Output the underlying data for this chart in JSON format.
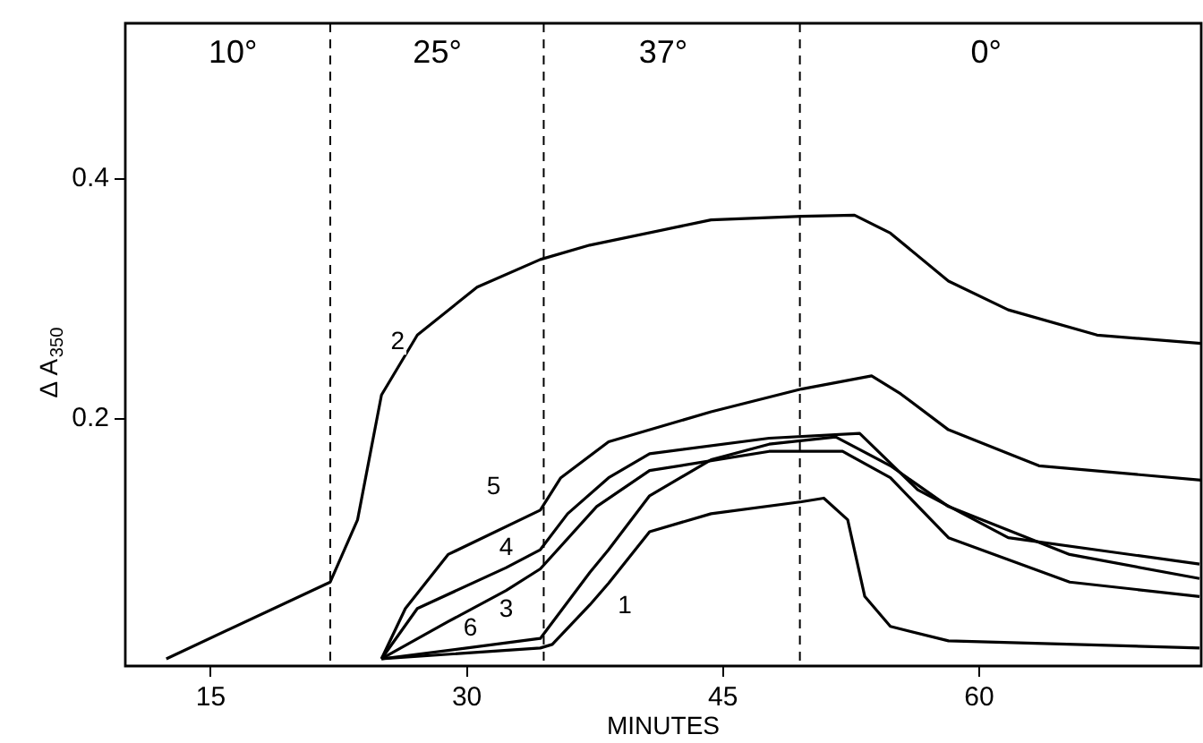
{
  "chart_data": {
    "type": "line",
    "xlabel": "MINUTES",
    "ylabel": "Δ A$_{350}$",
    "xlim": [
      10,
      73
    ],
    "ylim": [
      -0.006,
      0.53
    ],
    "xticks": [
      15,
      30,
      45,
      60
    ],
    "yticks": [
      0.2,
      0.4
    ],
    "marker": "none",
    "line_style": "solid",
    "legend": false,
    "ref_lines": [
      {
        "axis": "x",
        "value": 22,
        "line_style": "dashed",
        "color": "#000000"
      },
      {
        "axis": "x",
        "value": 34.5,
        "line_style": "dashed",
        "color": "#000000"
      },
      {
        "axis": "x",
        "value": 49.5,
        "line_style": "dashed",
        "color": "#000000"
      }
    ],
    "annotations": [
      "10°",
      "25°",
      "37°",
      "0°"
    ],
    "series": [
      {
        "name": "1",
        "color": "#000000",
        "x": [
          25,
          34.3,
          35,
          37.2,
          38.3,
          40.7,
          44.3,
          49.6,
          50.9,
          52.3,
          53.3,
          54.8,
          58.2,
          72.9
        ],
        "values": [
          0,
          0.009,
          0.012,
          0.045,
          0.063,
          0.106,
          0.121,
          0.131,
          0.134,
          0.116,
          0.052,
          0.027,
          0.015,
          0.009
        ]
      },
      {
        "name": "2",
        "color": "#000000",
        "x": [
          12.4,
          22,
          23.6,
          25,
          27.1,
          30.6,
          34.3,
          37.2,
          44.3,
          49.6,
          52.7,
          54.8,
          58.2,
          61.7,
          66.9,
          73
        ],
        "values": [
          0,
          0.064,
          0.116,
          0.22,
          0.27,
          0.31,
          0.333,
          0.345,
          0.366,
          0.369,
          0.37,
          0.355,
          0.315,
          0.291,
          0.27,
          0.263
        ]
      },
      {
        "name": "3",
        "color": "#000000",
        "x": [
          25,
          28.9,
          32.3,
          34.3,
          37.6,
          40.7,
          47.7,
          52,
          54.8,
          58.2,
          65.3,
          72.9
        ],
        "values": [
          0,
          0.031,
          0.057,
          0.075,
          0.127,
          0.157,
          0.173,
          0.173,
          0.151,
          0.101,
          0.064,
          0.052
        ]
      },
      {
        "name": "4",
        "color": "#000000",
        "x": [
          25,
          27.1,
          32.3,
          34.3,
          35.9,
          38.3,
          40.7,
          47.7,
          53,
          56.4,
          61.7,
          72.9
        ],
        "values": [
          0,
          0.042,
          0.076,
          0.091,
          0.121,
          0.151,
          0.171,
          0.184,
          0.188,
          0.141,
          0.101,
          0.079
        ]
      },
      {
        "name": "5",
        "color": "#000000",
        "x": [
          25,
          26.4,
          28.9,
          34.3,
          35.5,
          38.3,
          44.3,
          49.6,
          53.7,
          55.4,
          58.2,
          63.5,
          73
        ],
        "values": [
          0,
          0.042,
          0.087,
          0.124,
          0.151,
          0.181,
          0.206,
          0.225,
          0.236,
          0.221,
          0.191,
          0.161,
          0.149
        ]
      },
      {
        "name": "6",
        "color": "#000000",
        "x": [
          25,
          30,
          34.3,
          37.2,
          38.3,
          40.7,
          44.3,
          47.7,
          51.6,
          54.8,
          58.2,
          65.3,
          72.9
        ],
        "values": [
          0,
          0.009,
          0.017,
          0.072,
          0.091,
          0.136,
          0.166,
          0.179,
          0.185,
          0.161,
          0.127,
          0.087,
          0.067
        ]
      }
    ]
  }
}
